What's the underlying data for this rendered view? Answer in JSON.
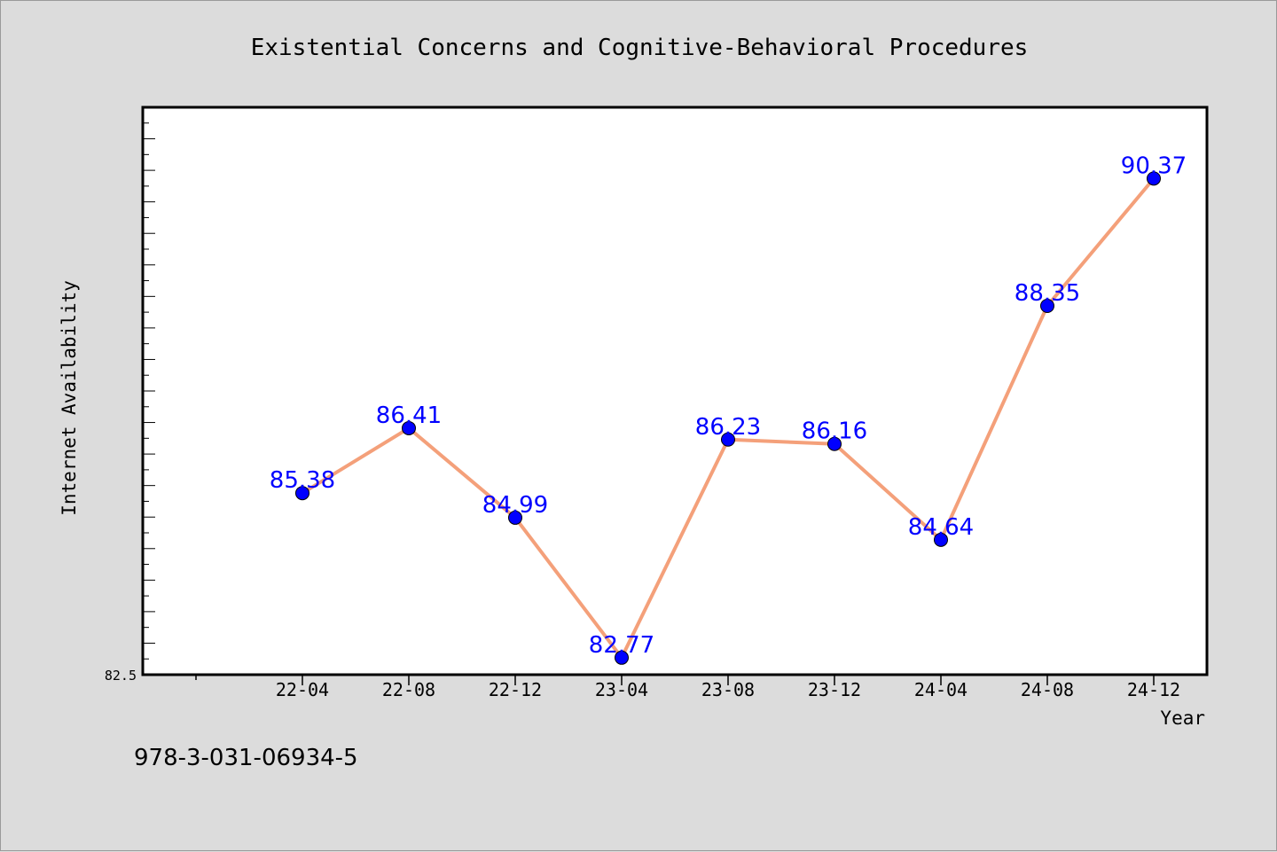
{
  "colors": {
    "background": "#dcdcdc",
    "plot_background": "#ffffff",
    "line": "#f4a07a",
    "marker": "#0000ff",
    "data_label": "#0000ff"
  },
  "footer_text": "978-3-031-06934-5",
  "chart_data": {
    "type": "line",
    "title": "Existential Concerns and Cognitive-Behavioral Procedures",
    "xlabel": "Year",
    "ylabel": "Internet Availability",
    "categories": [
      "22-04",
      "22-08",
      "22-12",
      "23-04",
      "23-08",
      "23-12",
      "24-04",
      "24-08",
      "24-12"
    ],
    "series": [
      {
        "values": [
          85.38,
          86.41,
          84.99,
          82.77,
          86.23,
          86.16,
          84.64,
          88.35,
          90.37
        ]
      }
    ],
    "data_labels": [
      "85.38",
      "86.41",
      "84.99",
      "82.77",
      "86.23",
      "86.16",
      "84.64",
      "88.35",
      "90.37"
    ],
    "ylim": [
      82.5,
      91.5
    ],
    "y_tick_labels": [
      "82.5"
    ],
    "grid": false,
    "legend": "none"
  }
}
